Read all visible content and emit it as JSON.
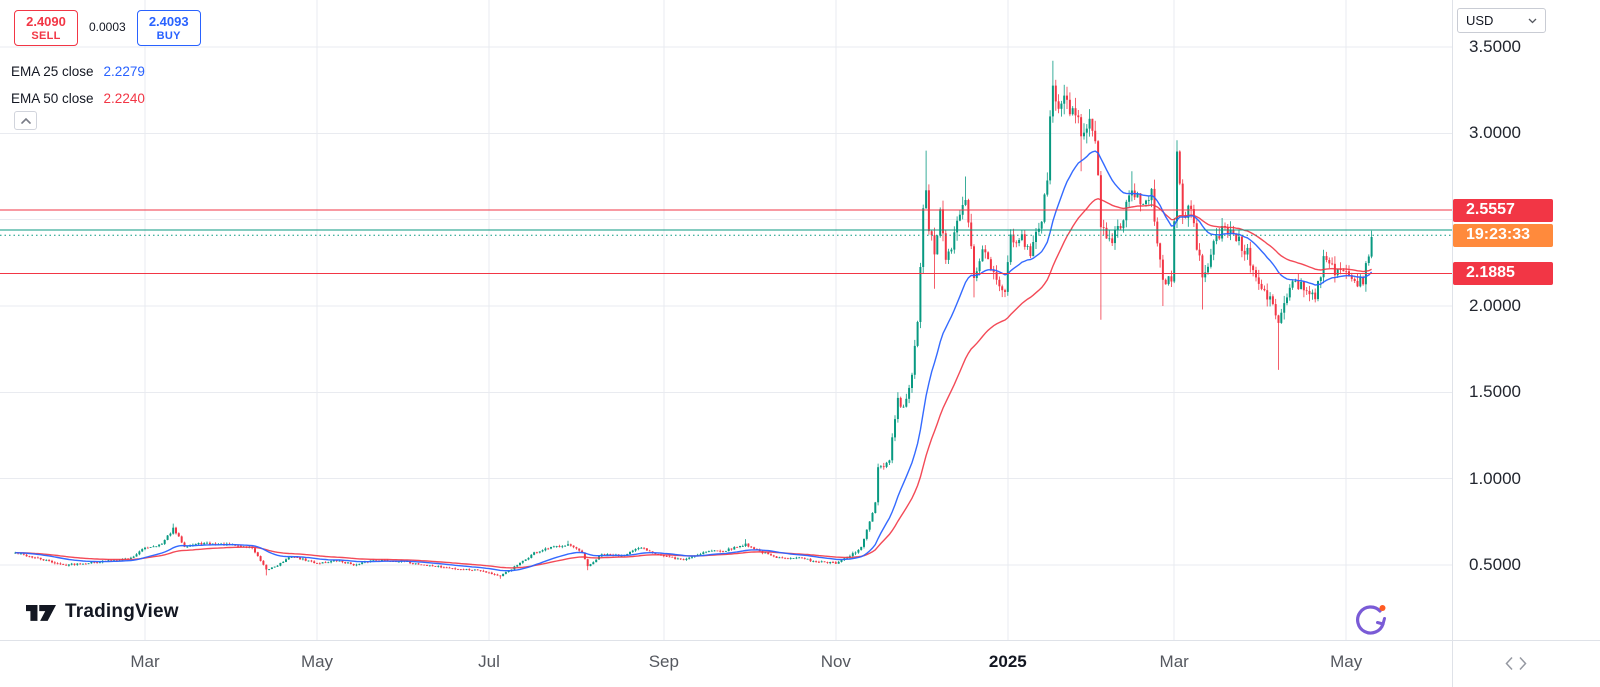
{
  "order_panel": {
    "sell_price": "2.4090",
    "sell_label": "SELL",
    "spread": "0.0003",
    "buy_price": "2.4093",
    "buy_label": "BUY"
  },
  "indicators": [
    {
      "label": "EMA 25 close",
      "value": "2.2279",
      "color": "#2962ff"
    },
    {
      "label": "EMA 50 close",
      "value": "2.2240",
      "color": "#f23645"
    }
  ],
  "currency_selector": {
    "label": "USD"
  },
  "attribution": {
    "text": "TradingView"
  },
  "colors": {
    "up": "#089981",
    "down": "#f23645",
    "grid": "#e9ebf0",
    "level_red": "#f23645",
    "level_green": "#089981",
    "countdown_bg": "#ff8a3c",
    "label_red_bg": "#f23645"
  },
  "chart_data": {
    "type": "candlestick",
    "currency": "USD",
    "interval": "daily",
    "ylim": [
      0.35,
      3.7
    ],
    "grid": true,
    "current_price": 2.4093,
    "countdown": "19:23:33",
    "ema25_last": 2.2279,
    "ema50_last": 2.224,
    "price_gridlines": [
      0.5,
      1.0,
      1.5,
      2.0,
      2.5,
      3.0,
      3.5
    ],
    "y_axis_ticks": [
      3.5,
      3.0,
      2.0,
      1.5,
      1.0,
      0.5
    ],
    "x_ticks": [
      {
        "label": "Mar",
        "day": 46
      },
      {
        "label": "May",
        "day": 107
      },
      {
        "label": "Jul",
        "day": 168
      },
      {
        "label": "Sep",
        "day": 230
      },
      {
        "label": "Nov",
        "day": 291
      },
      {
        "label": "2025",
        "day": 352,
        "major": true
      },
      {
        "label": "Mar",
        "day": 411
      },
      {
        "label": "May",
        "day": 472
      }
    ],
    "levels": [
      {
        "price": 2.5557,
        "color": "#f23645",
        "dash": "none"
      },
      {
        "price": 2.1885,
        "color": "#f23645",
        "dash": "none"
      },
      {
        "price": 2.44,
        "color": "#089981",
        "dash": "none"
      },
      {
        "price": 2.4093,
        "color": "#089981",
        "dash": "dot"
      }
    ],
    "axis_price_labels": [
      {
        "text": "2.5557",
        "price": 2.5557,
        "bg": "#f23645"
      },
      {
        "text": "19:23:33",
        "price": 2.4093,
        "bg": "#ff8a3c"
      },
      {
        "text": "2.1885",
        "price": 2.1885,
        "bg": "#f23645"
      }
    ],
    "anchors": [
      [
        0,
        0.57
      ],
      [
        10,
        0.53
      ],
      [
        17,
        0.5
      ],
      [
        31,
        0.52
      ],
      [
        41,
        0.54
      ],
      [
        46,
        0.6
      ],
      [
        52,
        0.62
      ],
      [
        56,
        0.71,
        0.74
      ],
      [
        60,
        0.61
      ],
      [
        66,
        0.625
      ],
      [
        77,
        0.615
      ],
      [
        84,
        0.6
      ],
      [
        89,
        0.47,
        null,
        0.44
      ],
      [
        93,
        0.5
      ],
      [
        98,
        0.55
      ],
      [
        107,
        0.51
      ],
      [
        114,
        0.525
      ],
      [
        121,
        0.5
      ],
      [
        127,
        0.53
      ],
      [
        138,
        0.52
      ],
      [
        145,
        0.5
      ],
      [
        155,
        0.48
      ],
      [
        165,
        0.47
      ],
      [
        172,
        0.435,
        null,
        0.42
      ],
      [
        180,
        0.52
      ],
      [
        184,
        0.57
      ],
      [
        190,
        0.6
      ],
      [
        196,
        0.62,
        0.64
      ],
      [
        201,
        0.57
      ],
      [
        203,
        0.49,
        null,
        0.47
      ],
      [
        208,
        0.56
      ],
      [
        215,
        0.555
      ],
      [
        222,
        0.6
      ],
      [
        230,
        0.55
      ],
      [
        237,
        0.53
      ],
      [
        245,
        0.58
      ],
      [
        252,
        0.585
      ],
      [
        259,
        0.62,
        0.65
      ],
      [
        264,
        0.58
      ],
      [
        270,
        0.54
      ],
      [
        277,
        0.545
      ],
      [
        284,
        0.52
      ],
      [
        291,
        0.51
      ],
      [
        296,
        0.55
      ],
      [
        300,
        0.6
      ],
      [
        302,
        0.7
      ],
      [
        305,
        0.85
      ],
      [
        306,
        1.05
      ],
      [
        310,
        1.1
      ],
      [
        312,
        1.35
      ],
      [
        313,
        1.45,
        1.5
      ],
      [
        315,
        1.4
      ],
      [
        318,
        1.6
      ],
      [
        320,
        1.9
      ],
      [
        321,
        2.2
      ],
      [
        322,
        2.55
      ],
      [
        323,
        2.7,
        2.9
      ],
      [
        324,
        2.45
      ],
      [
        326,
        2.3,
        null,
        2.1
      ],
      [
        328,
        2.55
      ],
      [
        330,
        2.25
      ],
      [
        333,
        2.4
      ],
      [
        337,
        2.65,
        2.75
      ],
      [
        340,
        2.15,
        null,
        2.05
      ],
      [
        343,
        2.32
      ],
      [
        347,
        2.22
      ],
      [
        351,
        2.06
      ],
      [
        353,
        2.4
      ],
      [
        357,
        2.4
      ],
      [
        360,
        2.28
      ],
      [
        364,
        2.52
      ],
      [
        366,
        2.75
      ],
      [
        367,
        3.1
      ],
      [
        368,
        3.3,
        3.42
      ],
      [
        370,
        3.12
      ],
      [
        372,
        3.22
      ],
      [
        374,
        3.15
      ],
      [
        378,
        3.02,
        null,
        2.78
      ],
      [
        381,
        3.1
      ],
      [
        383,
        2.98
      ],
      [
        385,
        2.45,
        null,
        1.92
      ],
      [
        388,
        2.38
      ],
      [
        392,
        2.46
      ],
      [
        396,
        2.7,
        2.78
      ],
      [
        400,
        2.56
      ],
      [
        403,
        2.64
      ],
      [
        407,
        2.14,
        null,
        2.0
      ],
      [
        410,
        2.16
      ],
      [
        412,
        2.88,
        2.96
      ],
      [
        414,
        2.52
      ],
      [
        417,
        2.56
      ],
      [
        421,
        2.16,
        null,
        1.98
      ],
      [
        425,
        2.36
      ],
      [
        429,
        2.46
      ],
      [
        433,
        2.4
      ],
      [
        437,
        2.3
      ],
      [
        441,
        2.12
      ],
      [
        444,
        2.06
      ],
      [
        448,
        1.92,
        null,
        1.63
      ],
      [
        450,
        2.0
      ],
      [
        453,
        2.16
      ],
      [
        457,
        2.1
      ],
      [
        461,
        2.07
      ],
      [
        464,
        2.26
      ],
      [
        468,
        2.21
      ],
      [
        472,
        2.2
      ],
      [
        475,
        2.14
      ],
      [
        478,
        2.16
      ],
      [
        480,
        2.31
      ],
      [
        481,
        2.41,
        2.435
      ]
    ]
  }
}
